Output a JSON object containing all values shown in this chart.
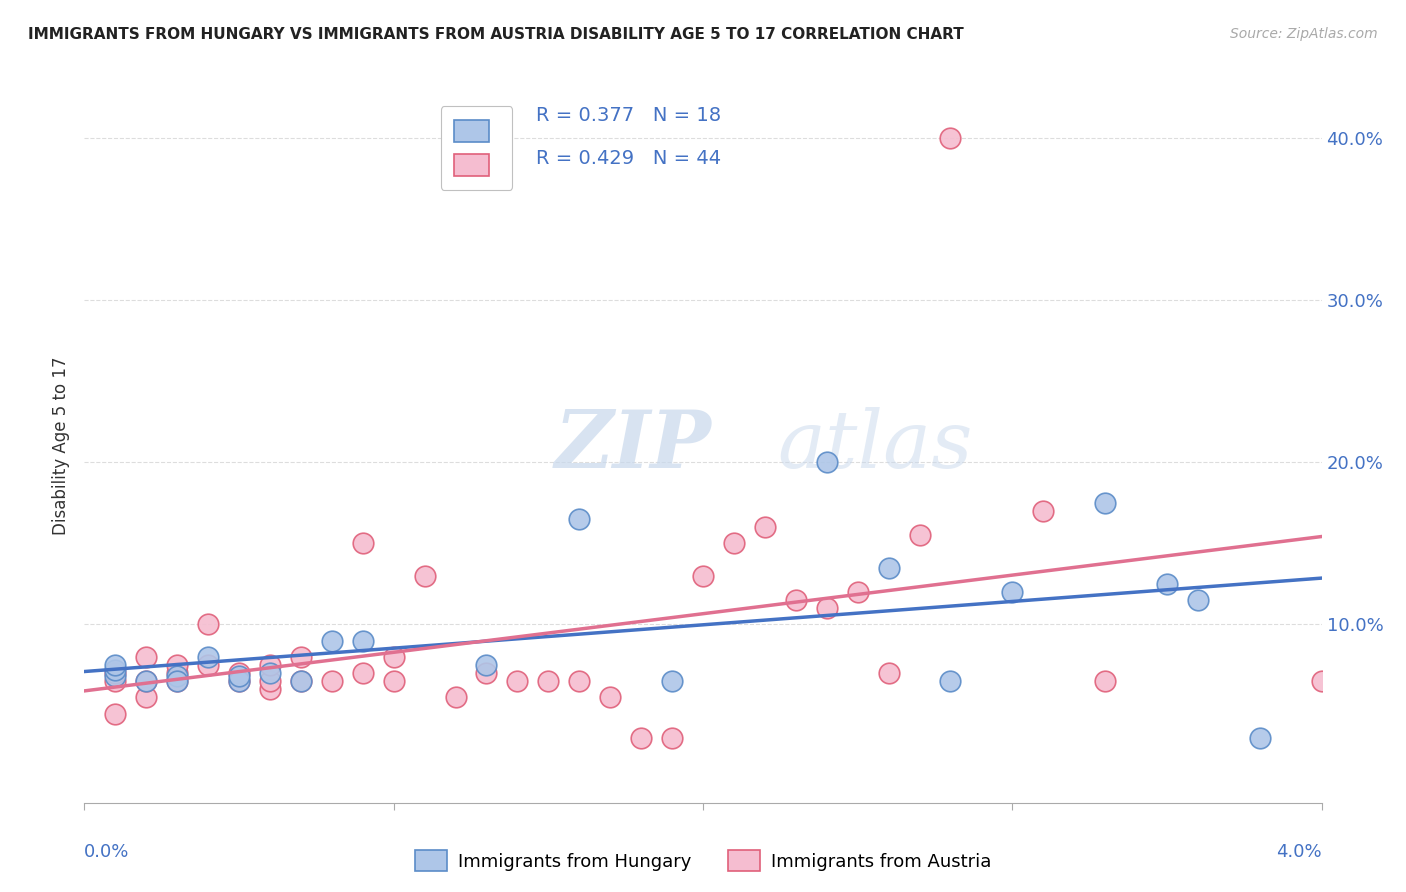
{
  "title": "IMMIGRANTS FROM HUNGARY VS IMMIGRANTS FROM AUSTRIA DISABILITY AGE 5 TO 17 CORRELATION CHART",
  "source": "Source: ZipAtlas.com",
  "ylabel": "Disability Age 5 to 17",
  "xlim": [
    0.0,
    0.04
  ],
  "ylim": [
    -0.01,
    0.43
  ],
  "yticks": [
    0.1,
    0.2,
    0.3,
    0.4
  ],
  "ytick_labels": [
    "10.0%",
    "20.0%",
    "30.0%",
    "40.0%"
  ],
  "hungary_color": "#aec6e8",
  "austria_color": "#f5bdd0",
  "hungary_edge": "#5b8cc8",
  "austria_edge": "#e0607a",
  "trend_hungary_color": "#4472c4",
  "trend_austria_color": "#e07090",
  "tick_label_color": "#4472c4",
  "legend_text_color": "#4472c4",
  "hungary_x": [
    0.001,
    0.001,
    0.001,
    0.002,
    0.003,
    0.003,
    0.004,
    0.005,
    0.005,
    0.006,
    0.007,
    0.008,
    0.009,
    0.013,
    0.016,
    0.019,
    0.024,
    0.026,
    0.028,
    0.03,
    0.033,
    0.035,
    0.036,
    0.038
  ],
  "hungary_y": [
    0.068,
    0.072,
    0.075,
    0.065,
    0.068,
    0.065,
    0.08,
    0.065,
    0.068,
    0.07,
    0.065,
    0.09,
    0.09,
    0.075,
    0.165,
    0.065,
    0.2,
    0.135,
    0.065,
    0.12,
    0.175,
    0.125,
    0.115,
    0.03
  ],
  "austria_x": [
    0.001,
    0.001,
    0.001,
    0.002,
    0.002,
    0.002,
    0.003,
    0.003,
    0.003,
    0.004,
    0.004,
    0.005,
    0.005,
    0.006,
    0.006,
    0.006,
    0.007,
    0.007,
    0.008,
    0.009,
    0.009,
    0.01,
    0.01,
    0.011,
    0.012,
    0.013,
    0.014,
    0.015,
    0.016,
    0.017,
    0.018,
    0.019,
    0.02,
    0.021,
    0.022,
    0.023,
    0.024,
    0.025,
    0.026,
    0.027,
    0.028,
    0.031,
    0.033,
    0.04
  ],
  "austria_y": [
    0.045,
    0.065,
    0.07,
    0.055,
    0.065,
    0.08,
    0.07,
    0.075,
    0.065,
    0.075,
    0.1,
    0.065,
    0.07,
    0.06,
    0.065,
    0.075,
    0.08,
    0.065,
    0.065,
    0.07,
    0.15,
    0.08,
    0.065,
    0.13,
    0.055,
    0.07,
    0.065,
    0.065,
    0.065,
    0.055,
    0.03,
    0.03,
    0.13,
    0.15,
    0.16,
    0.115,
    0.11,
    0.12,
    0.07,
    0.155,
    0.4,
    0.17,
    0.065,
    0.065
  ],
  "watermark_zip": "ZIP",
  "watermark_atlas": "atlas",
  "background_color": "#ffffff",
  "grid_color": "#dddddd",
  "legend_box_edge": "#c0c0c0"
}
